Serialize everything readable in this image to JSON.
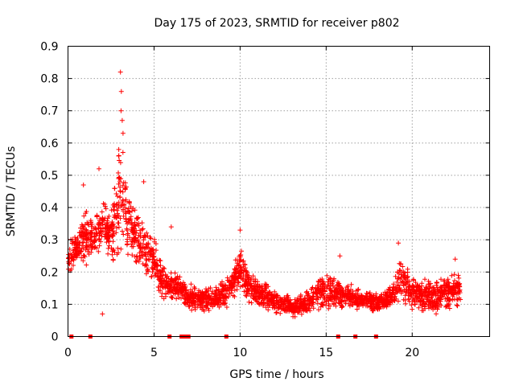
{
  "chart_data": {
    "type": "scatter",
    "title": "Day 175 of 2023, SRMTID for receiver p802",
    "xlabel": "GPS time / hours",
    "ylabel": "SRMTID / TECUs",
    "xlim": [
      0,
      24.5
    ],
    "ylim": [
      0,
      0.9
    ],
    "x_ticks": [
      0,
      5,
      10,
      15,
      20
    ],
    "x_tick_labels": [
      "0",
      "5",
      "10",
      "15",
      "20"
    ],
    "y_ticks": [
      0,
      0.1,
      0.2,
      0.3,
      0.4,
      0.5,
      0.6,
      0.7,
      0.8,
      0.9
    ],
    "y_tick_labels": [
      "0",
      "0.1",
      "0.2",
      "0.3",
      "0.4",
      "0.5",
      "0.6",
      "0.7",
      "0.8",
      "0.9"
    ],
    "grid": true,
    "marker": "+",
    "color": "#ff0000",
    "zero_markers_x": [
      0.2,
      1.3,
      5.9,
      6.6,
      6.8,
      7.0,
      9.2,
      15.7,
      16.7,
      17.9
    ],
    "envelope": {
      "x": [
        0,
        0.5,
        1.0,
        1.5,
        2.0,
        2.5,
        2.8,
        3.0,
        3.3,
        3.7,
        4.0,
        4.5,
        5.0,
        5.5,
        6.0,
        6.5,
        7.0,
        7.5,
        8.0,
        9.0,
        9.5,
        10.0,
        10.5,
        11.0,
        12.0,
        13.0,
        14.0,
        14.5,
        15.0,
        15.5,
        16.0,
        17.0,
        18.0,
        18.5,
        19.0,
        19.3,
        20.0,
        21.0,
        22.0,
        22.8
      ],
      "low": [
        0.18,
        0.2,
        0.2,
        0.22,
        0.25,
        0.2,
        0.15,
        0.2,
        0.25,
        0.22,
        0.2,
        0.15,
        0.14,
        0.1,
        0.09,
        0.1,
        0.07,
        0.07,
        0.06,
        0.08,
        0.09,
        0.12,
        0.1,
        0.08,
        0.06,
        0.05,
        0.06,
        0.07,
        0.06,
        0.07,
        0.08,
        0.07,
        0.07,
        0.08,
        0.08,
        0.09,
        0.07,
        0.06,
        0.07,
        0.08
      ],
      "high": [
        0.3,
        0.33,
        0.42,
        0.38,
        0.45,
        0.42,
        0.55,
        0.72,
        0.55,
        0.42,
        0.45,
        0.38,
        0.32,
        0.24,
        0.22,
        0.2,
        0.17,
        0.16,
        0.17,
        0.18,
        0.22,
        0.3,
        0.22,
        0.2,
        0.16,
        0.13,
        0.15,
        0.2,
        0.21,
        0.2,
        0.18,
        0.15,
        0.14,
        0.15,
        0.2,
        0.27,
        0.2,
        0.18,
        0.2,
        0.22
      ]
    },
    "outliers": [
      {
        "x": 3.05,
        "y": 0.82
      },
      {
        "x": 3.1,
        "y": 0.76
      },
      {
        "x": 3.08,
        "y": 0.7
      },
      {
        "x": 3.15,
        "y": 0.67
      },
      {
        "x": 3.2,
        "y": 0.63
      },
      {
        "x": 2.95,
        "y": 0.58
      },
      {
        "x": 1.8,
        "y": 0.52
      },
      {
        "x": 0.9,
        "y": 0.47
      },
      {
        "x": 4.4,
        "y": 0.48
      },
      {
        "x": 6.0,
        "y": 0.34
      },
      {
        "x": 10.0,
        "y": 0.33
      },
      {
        "x": 15.8,
        "y": 0.25
      },
      {
        "x": 19.2,
        "y": 0.29
      },
      {
        "x": 22.5,
        "y": 0.24
      },
      {
        "x": 2.0,
        "y": 0.07
      }
    ],
    "n_points": 2600,
    "seed": 175
  }
}
